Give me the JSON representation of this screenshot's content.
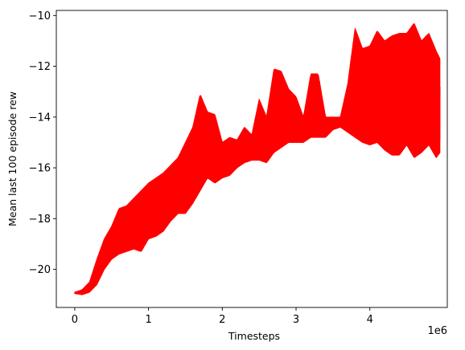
{
  "chart_data": {
    "type": "line",
    "xlabel": "Timesteps",
    "ylabel": "Mean last 100 episode rew",
    "x_offset_label": "1e6",
    "xlim": [
      -0.25,
      5.05
    ],
    "ylim": [
      -21.5,
      -9.8
    ],
    "xticks": [
      0,
      1,
      2,
      3,
      4
    ],
    "xtick_labels": [
      "0",
      "1",
      "2",
      "3",
      "4"
    ],
    "yticks": [
      -20,
      -18,
      -16,
      -14,
      -12,
      -10
    ],
    "ytick_labels": [
      "−20",
      "−18",
      "−16",
      "−14",
      "−12",
      "−10"
    ],
    "grid": false,
    "series": [
      {
        "color": "#ff0000",
        "band_x": [
          0.0,
          0.1,
          0.2,
          0.3,
          0.4,
          0.5,
          0.6,
          0.7,
          0.8,
          0.9,
          1.0,
          1.1,
          1.2,
          1.3,
          1.4,
          1.5,
          1.6,
          1.7,
          1.8,
          1.9,
          2.0,
          2.1,
          2.2,
          2.3,
          2.4,
          2.5,
          2.6,
          2.7,
          2.8,
          2.9,
          3.0,
          3.1,
          3.2,
          3.3,
          3.4,
          3.5,
          3.6,
          3.7,
          3.8,
          3.9,
          4.0,
          4.1,
          4.2,
          4.3,
          4.4,
          4.5,
          4.6,
          4.7,
          4.8,
          4.9,
          4.95
        ],
        "upper": [
          -20.9,
          -20.8,
          -20.5,
          -19.6,
          -18.8,
          -18.3,
          -17.6,
          -17.5,
          -17.2,
          -16.9,
          -16.6,
          -16.4,
          -16.2,
          -15.9,
          -15.6,
          -15.0,
          -14.4,
          -13.1,
          -13.8,
          -13.9,
          -15.0,
          -14.8,
          -14.9,
          -14.4,
          -14.7,
          -13.3,
          -14.0,
          -12.1,
          -12.2,
          -12.9,
          -13.2,
          -14.0,
          -12.3,
          -12.3,
          -14.0,
          -14.0,
          -14.0,
          -12.7,
          -10.5,
          -11.3,
          -11.2,
          -10.6,
          -11.0,
          -10.8,
          -10.7,
          -10.7,
          -10.3,
          -11.0,
          -10.7,
          -11.4,
          -11.7
        ],
        "lower": [
          -20.95,
          -21.0,
          -20.9,
          -20.6,
          -20.0,
          -19.6,
          -19.4,
          -19.3,
          -19.2,
          -19.3,
          -18.8,
          -18.7,
          -18.5,
          -18.1,
          -17.8,
          -17.8,
          -17.4,
          -16.9,
          -16.4,
          -16.6,
          -16.4,
          -16.3,
          -16.0,
          -15.8,
          -15.7,
          -15.7,
          -15.8,
          -15.4,
          -15.2,
          -15.0,
          -15.0,
          -15.0,
          -14.8,
          -14.8,
          -14.8,
          -14.5,
          -14.4,
          -14.6,
          -14.8,
          -15.0,
          -15.1,
          -15.0,
          -15.3,
          -15.5,
          -15.5,
          -15.1,
          -15.6,
          -15.4,
          -15.1,
          -15.6,
          -15.4
        ],
        "start_x": 0.0,
        "end_x": 4.95
      }
    ]
  }
}
